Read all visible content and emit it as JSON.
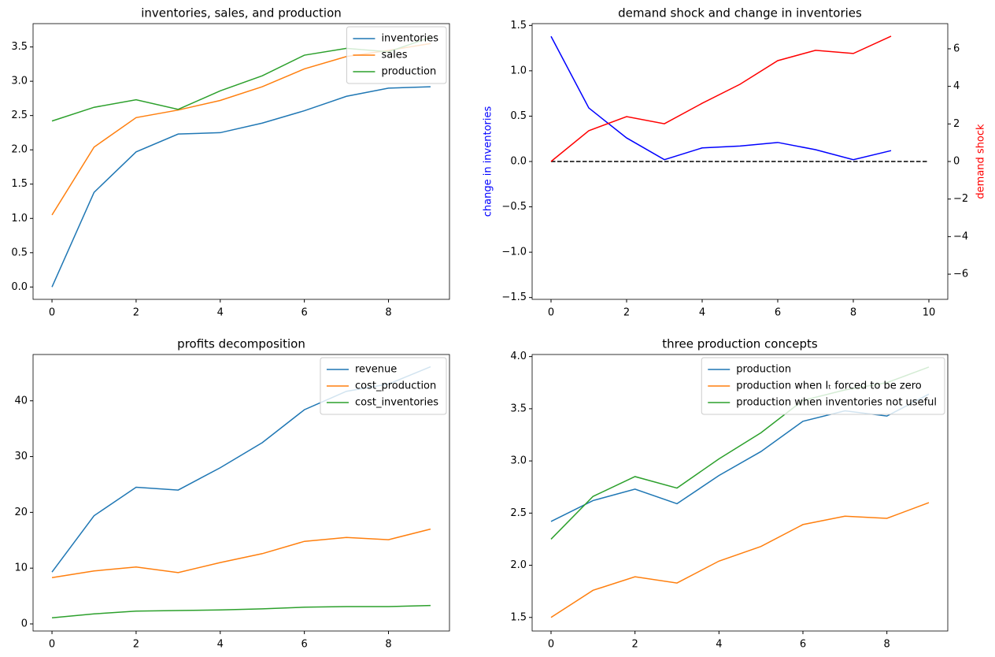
{
  "chart_data": [
    {
      "type": "line",
      "title": "inventories, sales, and production",
      "x": [
        0,
        1,
        2,
        3,
        4,
        5,
        6,
        7,
        8,
        9
      ],
      "series": [
        {
          "name": "inventories",
          "color": "#1f77b4",
          "values": [
            0.0,
            1.38,
            1.97,
            2.23,
            2.25,
            2.39,
            2.57,
            2.78,
            2.9,
            2.92
          ]
        },
        {
          "name": "sales",
          "color": "#ff7f0e",
          "values": [
            1.05,
            2.04,
            2.47,
            2.58,
            2.72,
            2.92,
            3.18,
            3.36,
            3.45,
            3.55
          ]
        },
        {
          "name": "production",
          "color": "#2ca02c",
          "values": [
            2.42,
            2.62,
            2.73,
            2.59,
            2.86,
            3.08,
            3.38,
            3.48,
            3.43,
            3.64
          ]
        }
      ],
      "xlim": [
        -0.45,
        9.45
      ],
      "xticks": [
        0,
        2,
        4,
        6,
        8
      ],
      "ylim": [
        -0.18,
        3.84
      ],
      "yticks": [
        {
          "value": 0,
          "label": "0.0"
        },
        0.5,
        {
          "value": 1,
          "label": "1.0"
        },
        1.5,
        {
          "value": 2,
          "label": "2.0"
        },
        2.5,
        {
          "value": 3,
          "label": "3.0"
        },
        3.5
      ],
      "legend": "upper right"
    },
    {
      "type": "line",
      "title": "demand shock and change in inventories",
      "x": [
        0,
        1,
        2,
        3,
        4,
        5,
        6,
        7,
        8,
        9
      ],
      "ylabel": "change in inventories",
      "ylabel_color": "blue",
      "y2label": "demand shock",
      "y2label_color": "red",
      "series": [
        {
          "color": "blue",
          "values": [
            1.38,
            0.59,
            0.26,
            0.02,
            0.15,
            0.17,
            0.21,
            0.13,
            0.02,
            0.12
          ]
        },
        {
          "color": "red",
          "axis": "y2",
          "values": [
            0,
            1.64,
            2.39,
            2.01,
            3.1,
            4.11,
            5.37,
            5.92,
            5.75,
            6.67
          ]
        }
      ],
      "reference_line": {
        "y": 0,
        "x": [
          0,
          10
        ],
        "color": "black",
        "dashed": true
      },
      "xlim": [
        -0.5,
        10.5
      ],
      "xticks": [
        0,
        2,
        4,
        6,
        8,
        10
      ],
      "ylim": [
        -1.52,
        1.52
      ],
      "yticks": [
        {
          "value": -1.5,
          "label": "−1.5"
        },
        {
          "value": -1,
          "label": "−1.0"
        },
        {
          "value": -0.5,
          "label": "−0.5"
        },
        {
          "value": 0,
          "label": "0.0"
        },
        0.5,
        {
          "value": 1,
          "label": "1.0"
        },
        1.5
      ],
      "y2lim": [
        -7.34,
        7.34
      ],
      "y2ticks": [
        {
          "value": -6,
          "label": "−6"
        },
        {
          "value": -4,
          "label": "−4"
        },
        {
          "value": -2,
          "label": "−2"
        },
        0,
        2,
        4,
        6
      ]
    },
    {
      "type": "line",
      "title": "profits decomposition",
      "x": [
        0,
        1,
        2,
        3,
        4,
        5,
        6,
        7,
        8,
        9
      ],
      "series": [
        {
          "name": "revenue",
          "color": "#1f77b4",
          "values": [
            9.3,
            19.4,
            24.5,
            24.0,
            28.0,
            32.5,
            38.4,
            41.7,
            43.0,
            46.1
          ]
        },
        {
          "name": "cost_production",
          "color": "#ff7f0e",
          "values": [
            8.3,
            9.5,
            10.2,
            9.2,
            11.0,
            12.6,
            14.8,
            15.5,
            15.1,
            17.0
          ]
        },
        {
          "name": "cost_inventories",
          "color": "#2ca02c",
          "values": [
            1.1,
            1.8,
            2.3,
            2.4,
            2.5,
            2.7,
            3.0,
            3.1,
            3.1,
            3.3
          ]
        }
      ],
      "xlim": [
        -0.45,
        9.45
      ],
      "xticks": [
        0,
        2,
        4,
        6,
        8
      ],
      "ylim": [
        -1.27,
        48.3
      ],
      "yticks": [
        0,
        10,
        20,
        30,
        40
      ],
      "legend": "upper right"
    },
    {
      "type": "line",
      "title": "three production concepts",
      "x": [
        0,
        1,
        2,
        3,
        4,
        5,
        6,
        7,
        8,
        9
      ],
      "series": [
        {
          "name": "production",
          "color": "#1f77b4",
          "values": [
            2.42,
            2.62,
            2.73,
            2.59,
            2.86,
            3.09,
            3.38,
            3.48,
            3.43,
            3.64
          ]
        },
        {
          "name": "production when Iₜ forced to be zero",
          "color": "#ff7f0e",
          "values": [
            1.5,
            1.76,
            1.89,
            1.83,
            2.04,
            2.18,
            2.39,
            2.47,
            2.45,
            2.6
          ]
        },
        {
          "name": "production when inventories not useful",
          "color": "#2ca02c",
          "values": [
            2.25,
            2.66,
            2.85,
            2.74,
            3.02,
            3.27,
            3.58,
            3.68,
            3.75,
            3.9
          ]
        }
      ],
      "xlim": [
        -0.45,
        9.45
      ],
      "xticks": [
        0,
        2,
        4,
        6,
        8
      ],
      "ylim": [
        1.37,
        4.02
      ],
      "yticks": [
        1.5,
        {
          "value": 2,
          "label": "2.0"
        },
        2.5,
        {
          "value": 3,
          "label": "3.0"
        },
        3.5,
        {
          "value": 4,
          "label": "4.0"
        }
      ],
      "legend": "upper right"
    }
  ]
}
